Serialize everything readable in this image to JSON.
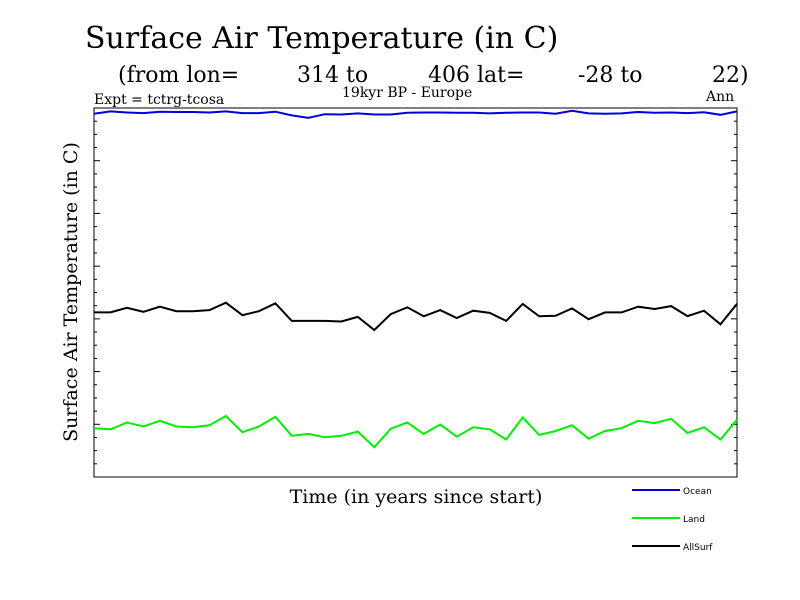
{
  "header": {
    "title": "Surface Air Temperature (in C)",
    "from_lon_label": "(from lon=",
    "lon_start": "314 to",
    "lon_end": "406 lat=",
    "lat_start": "-28 to",
    "lat_end": "22)",
    "expt": "Expt = tctrg-tcosa",
    "period": "19kyr BP - Europe",
    "season": "Ann"
  },
  "chart_data": {
    "type": "line",
    "title": "Surface Air Temperature (in C)",
    "xlabel": "Time (in years since start)",
    "ylabel": "Surface Air Temperature (in C)",
    "xlim": [
      0,
      39
    ],
    "ylim": [
      0,
      13
    ],
    "x": [
      0,
      1,
      2,
      3,
      4,
      5,
      6,
      7,
      8,
      9,
      10,
      11,
      12,
      13,
      14,
      15,
      16,
      17,
      18,
      19,
      20,
      21,
      22,
      23,
      24,
      25,
      26,
      27,
      28,
      29,
      30,
      31,
      32,
      33,
      34,
      35,
      36,
      37,
      38,
      39
    ],
    "series": [
      {
        "name": "Ocean",
        "color": "#0000dd",
        "values": [
          12.8,
          12.88,
          12.84,
          12.82,
          12.87,
          12.86,
          12.86,
          12.84,
          12.88,
          12.82,
          12.82,
          12.87,
          12.74,
          12.65,
          12.78,
          12.77,
          12.81,
          12.77,
          12.77,
          12.83,
          12.84,
          12.84,
          12.83,
          12.83,
          12.81,
          12.83,
          12.84,
          12.84,
          12.8,
          12.9,
          12.81,
          12.8,
          12.81,
          12.86,
          12.83,
          12.84,
          12.82,
          12.85,
          12.76,
          12.88
        ]
      },
      {
        "name": "Land",
        "color": "#00ee00",
        "values": [
          1.72,
          1.68,
          1.92,
          1.78,
          1.98,
          1.78,
          1.75,
          1.82,
          2.15,
          1.58,
          1.78,
          2.12,
          1.45,
          1.52,
          1.4,
          1.45,
          1.6,
          1.05,
          1.7,
          1.92,
          1.52,
          1.85,
          1.42,
          1.75,
          1.68,
          1.32,
          2.1,
          1.48,
          1.62,
          1.82,
          1.35,
          1.62,
          1.72,
          1.98,
          1.9,
          2.05,
          1.55,
          1.75,
          1.32,
          2.02
        ]
      },
      {
        "name": "AllSurf",
        "color": "#000000",
        "values": [
          5.8,
          5.8,
          5.96,
          5.82,
          6.0,
          5.84,
          5.84,
          5.88,
          6.14,
          5.7,
          5.84,
          6.12,
          5.5,
          5.5,
          5.5,
          5.48,
          5.64,
          5.18,
          5.74,
          5.98,
          5.66,
          5.88,
          5.6,
          5.86,
          5.78,
          5.5,
          6.1,
          5.66,
          5.68,
          5.94,
          5.56,
          5.8,
          5.8,
          6.0,
          5.92,
          6.02,
          5.67,
          5.86,
          5.38,
          6.1
        ]
      }
    ],
    "legend_position": "bottom-right"
  }
}
